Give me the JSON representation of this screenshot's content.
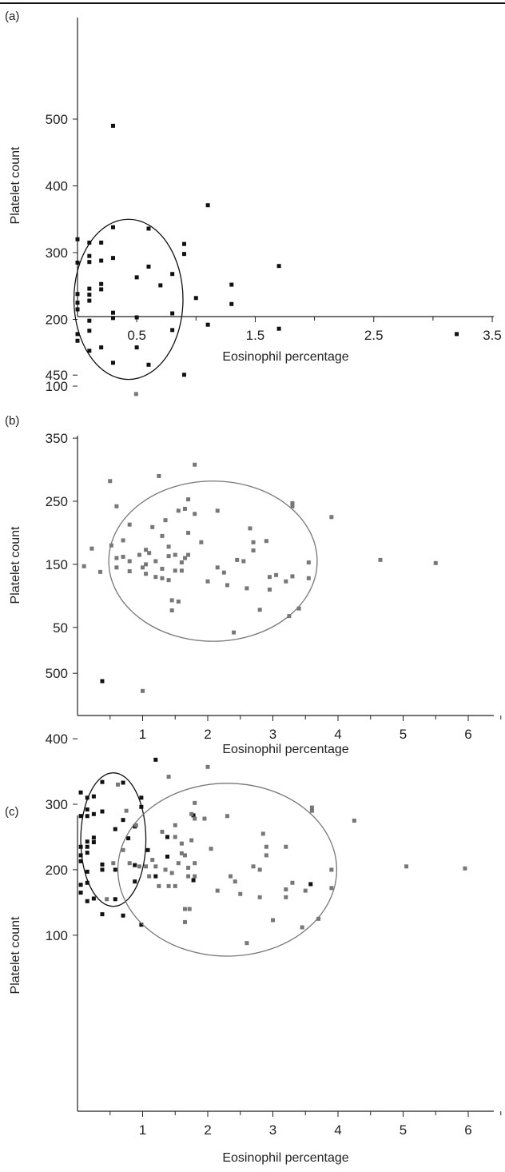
{
  "chart_data": [
    {
      "panel": "(a)",
      "type": "scatter",
      "xlabel": "Eosinophil percentage",
      "ylabel": "Platelet count",
      "xlim": [
        0,
        3.5
      ],
      "ylim": [
        80,
        530
      ],
      "xticks": [
        0.5,
        1.5,
        2.5,
        3.5
      ],
      "yticks": [
        100,
        200,
        300,
        400,
        500
      ],
      "grid": false,
      "marker_color": "#111111",
      "ellipse_color": "#111111",
      "ellipses": [
        {
          "cx": 0.43,
          "cy": 230,
          "rx": 0.46,
          "ry": 120
        }
      ],
      "series": [
        {
          "color": "#111111",
          "points": [
            [
              0.0,
              320
            ],
            [
              0.0,
              285
            ],
            [
              0.0,
              238
            ],
            [
              0.0,
              225
            ],
            [
              0.0,
              215
            ],
            [
              0.0,
              178
            ],
            [
              0.0,
              168
            ],
            [
              0.1,
              315
            ],
            [
              0.1,
              295
            ],
            [
              0.1,
              286
            ],
            [
              0.1,
              246
            ],
            [
              0.1,
              237
            ],
            [
              0.1,
              228
            ],
            [
              0.1,
              198
            ],
            [
              0.1,
              183
            ],
            [
              0.1,
              153
            ],
            [
              0.2,
              315
            ],
            [
              0.2,
              288
            ],
            [
              0.2,
              253
            ],
            [
              0.2,
              245
            ],
            [
              0.2,
              158
            ],
            [
              0.3,
              490
            ],
            [
              0.3,
              338
            ],
            [
              0.3,
              292
            ],
            [
              0.3,
              210
            ],
            [
              0.3,
              202
            ],
            [
              0.3,
              135
            ],
            [
              0.5,
              263
            ],
            [
              0.5,
              203
            ],
            [
              0.5,
              158
            ],
            [
              0.6,
              336
            ],
            [
              0.6,
              279
            ],
            [
              0.6,
              132
            ],
            [
              0.7,
              251
            ],
            [
              0.8,
              268
            ],
            [
              0.8,
              209
            ],
            [
              0.8,
              184
            ],
            [
              0.9,
              313
            ],
            [
              0.9,
              298
            ],
            [
              0.9,
              117
            ],
            [
              1.0,
              232
            ],
            [
              1.1,
              371
            ],
            [
              1.1,
              192
            ],
            [
              1.3,
              252
            ],
            [
              1.3,
              223
            ],
            [
              1.7,
              280
            ],
            [
              1.7,
              186
            ],
            [
              3.2,
              178
            ]
          ]
        }
      ]
    },
    {
      "panel": "(b)",
      "type": "scatter",
      "xlabel": "Eosinophil percentage",
      "ylabel": "Platelet count",
      "xlim": [
        0,
        6.5
      ],
      "ylim": [
        10,
        490
      ],
      "xticks": [
        1,
        2,
        3,
        4,
        5,
        6
      ],
      "yticks": [
        50,
        150,
        250,
        350,
        450
      ],
      "grid": false,
      "marker_color": "#777777",
      "ellipse_color": "#777777",
      "ellipses": [
        {
          "cx": 2.08,
          "cy": 155,
          "rx": 1.6,
          "ry": 127
        }
      ],
      "series": [
        {
          "color": "#777777",
          "points": [
            [
              0.1,
              147
            ],
            [
              0.22,
              175
            ],
            [
              0.35,
              138
            ],
            [
              0.5,
              282
            ],
            [
              0.52,
              180
            ],
            [
              0.6,
              242
            ],
            [
              0.6,
              160
            ],
            [
              0.6,
              145
            ],
            [
              0.7,
              188
            ],
            [
              0.7,
              162
            ],
            [
              0.8,
              213
            ],
            [
              0.8,
              155
            ],
            [
              0.8,
              139
            ],
            [
              0.9,
              420
            ],
            [
              0.95,
              165
            ],
            [
              1.0,
              145
            ],
            [
              1.05,
              173
            ],
            [
              1.05,
              150
            ],
            [
              1.05,
              135
            ],
            [
              1.1,
              168
            ],
            [
              1.15,
              209
            ],
            [
              1.2,
              155
            ],
            [
              1.2,
              130
            ],
            [
              1.25,
              290
            ],
            [
              1.3,
              195
            ],
            [
              1.3,
              143
            ],
            [
              1.3,
              128
            ],
            [
              1.35,
              220
            ],
            [
              1.4,
              178
            ],
            [
              1.4,
              163
            ],
            [
              1.4,
              125
            ],
            [
              1.45,
              93
            ],
            [
              1.45,
              77
            ],
            [
              1.5,
              165
            ],
            [
              1.5,
              140
            ],
            [
              1.55,
              235
            ],
            [
              1.55,
              91
            ],
            [
              1.6,
              153
            ],
            [
              1.6,
              140
            ],
            [
              1.65,
              238
            ],
            [
              1.65,
              160
            ],
            [
              1.7,
              253
            ],
            [
              1.7,
              200
            ],
            [
              1.7,
              165
            ],
            [
              1.8,
              308
            ],
            [
              1.8,
              230
            ],
            [
              1.9,
              185
            ],
            [
              2.0,
              123
            ],
            [
              2.15,
              235
            ],
            [
              2.15,
              145
            ],
            [
              2.25,
              137
            ],
            [
              2.3,
              117
            ],
            [
              2.4,
              42
            ],
            [
              2.45,
              157
            ],
            [
              2.55,
              155
            ],
            [
              2.6,
              112
            ],
            [
              2.65,
              207
            ],
            [
              2.7,
              185
            ],
            [
              2.7,
              172
            ],
            [
              2.8,
              78
            ],
            [
              2.9,
              187
            ],
            [
              2.95,
              130
            ],
            [
              2.95,
              110
            ],
            [
              3.05,
              133
            ],
            [
              3.2,
              123
            ],
            [
              3.25,
              68
            ],
            [
              3.3,
              247
            ],
            [
              3.3,
              242
            ],
            [
              3.3,
              131
            ],
            [
              3.4,
              80
            ],
            [
              3.55,
              153
            ],
            [
              3.55,
              128
            ],
            [
              3.9,
              225
            ],
            [
              4.65,
              157
            ],
            [
              5.5,
              152
            ]
          ]
        }
      ]
    },
    {
      "panel": "(c)",
      "type": "scatter",
      "xlabel": "Eosinophil percentage",
      "ylabel": "Platelet count",
      "xlim": [
        0,
        6.5
      ],
      "ylim": [
        50,
        545
      ],
      "xticks": [
        1,
        2,
        3,
        4,
        5,
        6
      ],
      "yticks": [
        100,
        200,
        300,
        400,
        500
      ],
      "grid": false,
      "ellipses": [
        {
          "cx": 0.55,
          "cy": 246,
          "rx": 0.5,
          "ry": 102,
          "color": "#111111"
        },
        {
          "cx": 2.3,
          "cy": 200,
          "rx": 1.68,
          "ry": 132,
          "color": "#777777"
        }
      ],
      "series": [
        {
          "color": "#111111",
          "points": [
            [
              0.05,
              318
            ],
            [
              0.05,
              282
            ],
            [
              0.05,
              235
            ],
            [
              0.05,
              222
            ],
            [
              0.05,
              213
            ],
            [
              0.05,
              177
            ],
            [
              0.05,
              165
            ],
            [
              0.15,
              310
            ],
            [
              0.15,
              292
            ],
            [
              0.15,
              282
            ],
            [
              0.15,
              243
            ],
            [
              0.15,
              235
            ],
            [
              0.15,
              226
            ],
            [
              0.15,
              197
            ],
            [
              0.15,
              180
            ],
            [
              0.15,
              152
            ],
            [
              0.25,
              312
            ],
            [
              0.25,
              285
            ],
            [
              0.25,
              249
            ],
            [
              0.25,
              242
            ],
            [
              0.25,
              156
            ],
            [
              0.38,
              488
            ],
            [
              0.38,
              334
            ],
            [
              0.38,
              289
            ],
            [
              0.38,
              208
            ],
            [
              0.38,
              200
            ],
            [
              0.38,
              132
            ],
            [
              0.58,
              262
            ],
            [
              0.58,
              200
            ],
            [
              0.58,
              155
            ],
            [
              0.7,
              333
            ],
            [
              0.7,
              276
            ],
            [
              0.7,
              130
            ],
            [
              0.78,
              248
            ],
            [
              0.88,
              266
            ],
            [
              0.88,
              207
            ],
            [
              0.88,
              182
            ],
            [
              0.98,
              310
            ],
            [
              0.98,
              296
            ],
            [
              0.98,
              116
            ],
            [
              1.08,
              230
            ],
            [
              1.2,
              368
            ],
            [
              1.2,
              190
            ],
            [
              1.38,
              250
            ],
            [
              1.38,
              220
            ],
            [
              1.78,
              283
            ],
            [
              1.78,
              184
            ],
            [
              3.58,
              178
            ]
          ]
        },
        {
          "color": "#777777",
          "points": [
            [
              0.45,
              155
            ],
            [
              0.55,
              210
            ],
            [
              0.62,
              330
            ],
            [
              0.7,
              230
            ],
            [
              0.75,
              290
            ],
            [
              0.8,
              210
            ],
            [
              0.9,
              268
            ],
            [
              0.95,
              205
            ],
            [
              1.0,
              473
            ],
            [
              1.05,
              205
            ],
            [
              1.1,
              190
            ],
            [
              1.15,
              215
            ],
            [
              1.2,
              205
            ],
            [
              1.25,
              175
            ],
            [
              1.3,
              258
            ],
            [
              1.35,
              200
            ],
            [
              1.4,
              342
            ],
            [
              1.4,
              175
            ],
            [
              1.45,
              195
            ],
            [
              1.5,
              268
            ],
            [
              1.5,
              250
            ],
            [
              1.5,
              175
            ],
            [
              1.55,
              210
            ],
            [
              1.6,
              240
            ],
            [
              1.6,
              225
            ],
            [
              1.65,
              222
            ],
            [
              1.65,
              140
            ],
            [
              1.65,
              120
            ],
            [
              1.7,
              190
            ],
            [
              1.7,
              203
            ],
            [
              1.72,
              140
            ],
            [
              1.75,
              285
            ],
            [
              1.75,
              245
            ],
            [
              1.8,
              302
            ],
            [
              1.8,
              278
            ],
            [
              1.8,
              210
            ],
            [
              1.8,
              190
            ],
            [
              1.95,
              278
            ],
            [
              2.0,
              357
            ],
            [
              2.05,
              232
            ],
            [
              2.15,
              168
            ],
            [
              2.3,
              282
            ],
            [
              2.35,
              190
            ],
            [
              2.42,
              182
            ],
            [
              2.5,
              163
            ],
            [
              2.6,
              88
            ],
            [
              2.7,
              205
            ],
            [
              2.8,
              200
            ],
            [
              2.8,
              158
            ],
            [
              2.85,
              255
            ],
            [
              2.9,
              235
            ],
            [
              2.9,
              222
            ],
            [
              3.0,
              123
            ],
            [
              3.2,
              235
            ],
            [
              3.2,
              170
            ],
            [
              3.2,
              158
            ],
            [
              3.3,
              180
            ],
            [
              3.45,
              112
            ],
            [
              3.5,
              168
            ],
            [
              3.6,
              295
            ],
            [
              3.6,
              290
            ],
            [
              3.7,
              125
            ],
            [
              3.9,
              200
            ],
            [
              3.9,
              172
            ],
            [
              4.25,
              275
            ],
            [
              5.05,
              205
            ],
            [
              5.95,
              202
            ]
          ]
        }
      ]
    }
  ]
}
